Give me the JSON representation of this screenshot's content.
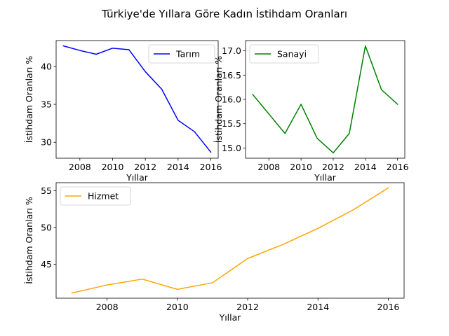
{
  "figure": {
    "suptitle": "Türkiye'de Yıllara Göre Kadın İstihdam Oranları"
  },
  "chart_data": [
    {
      "type": "line",
      "ylabel": "İstihdam Oranları %",
      "xlabel": "Yıllar",
      "legend_position": "upper-right",
      "xlim": [
        2006.55,
        2016.45
      ],
      "ylim": [
        27.9,
        43.4
      ],
      "xticks": [
        2008,
        2010,
        2012,
        2014,
        2016
      ],
      "yticks": [
        30,
        35,
        40
      ],
      "series": [
        {
          "name": "Tarım",
          "color": "#0000ff",
          "x": [
            2007,
            2008,
            2009,
            2010,
            2011,
            2012,
            2013,
            2014,
            2015,
            2016
          ],
          "y": [
            42.7,
            42.1,
            41.6,
            42.4,
            42.2,
            39.3,
            37.0,
            32.9,
            31.4,
            28.7
          ]
        }
      ]
    },
    {
      "type": "line",
      "ylabel": "İstihdam Oranları %",
      "xlabel": "Yıllar",
      "legend_position": "upper-left",
      "xlim": [
        2006.55,
        2016.45
      ],
      "ylim": [
        14.79,
        17.21
      ],
      "xticks": [
        2008,
        2010,
        2012,
        2014,
        2016
      ],
      "yticks": [
        15.0,
        15.5,
        16.0,
        16.5,
        17.0
      ],
      "ytick_labels": [
        "15.0",
        "15.5",
        "16.0",
        "16.5",
        "17.0"
      ],
      "series": [
        {
          "name": "Sanayi",
          "color": "#008000",
          "x": [
            2007,
            2008,
            2009,
            2010,
            2011,
            2012,
            2013,
            2014,
            2015,
            2016
          ],
          "y": [
            16.1,
            15.7,
            15.3,
            15.9,
            15.2,
            14.9,
            15.3,
            17.1,
            16.2,
            15.9
          ]
        }
      ]
    },
    {
      "type": "line",
      "ylabel": "İstihdam Oranları %",
      "xlabel": "Yıllar",
      "legend_position": "upper-left",
      "xlim": [
        2006.55,
        2016.45
      ],
      "ylim": [
        40.4,
        56.1
      ],
      "xticks": [
        2008,
        2010,
        2012,
        2014,
        2016
      ],
      "yticks": [
        45,
        50,
        55
      ],
      "series": [
        {
          "name": "Hizmet",
          "color": "#ffa500",
          "x": [
            2007,
            2008,
            2009,
            2010,
            2011,
            2012,
            2013,
            2014,
            2015,
            2016
          ],
          "y": [
            41.1,
            42.2,
            43.0,
            41.6,
            42.5,
            45.8,
            47.7,
            49.9,
            52.4,
            55.4
          ]
        }
      ]
    }
  ]
}
